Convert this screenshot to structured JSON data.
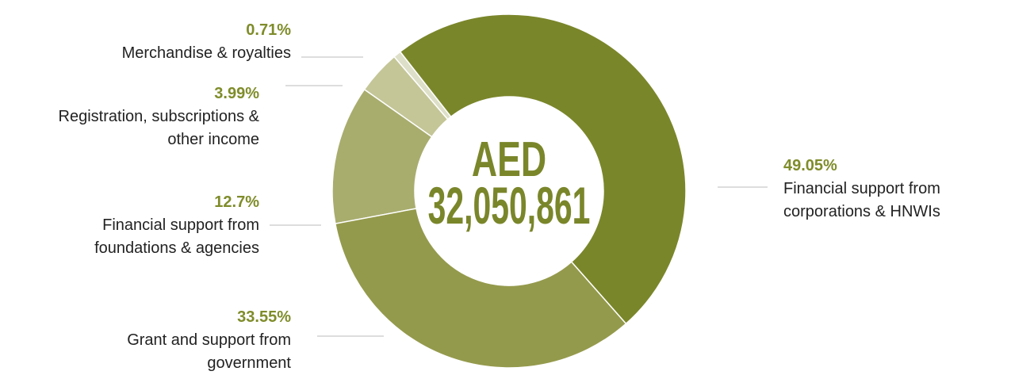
{
  "chart_data": {
    "type": "donut",
    "center_label": "AED",
    "center_value": "32,050,861",
    "categories": [
      "Financial support from corporations & HNWIs",
      "Grant and support from government",
      "Financial support from foundations & agencies",
      "Registration, subscriptions & other income",
      "Merchandise & royalties"
    ],
    "values": [
      49.05,
      33.55,
      12.7,
      3.99,
      0.71
    ],
    "value_labels": [
      "49.05%",
      "33.55%",
      "12.7%",
      "3.99%",
      "0.71%"
    ],
    "colors": [
      "#7a862a",
      "#949a4c",
      "#a8ad6e",
      "#c4c698",
      "#dedfc8"
    ]
  }
}
